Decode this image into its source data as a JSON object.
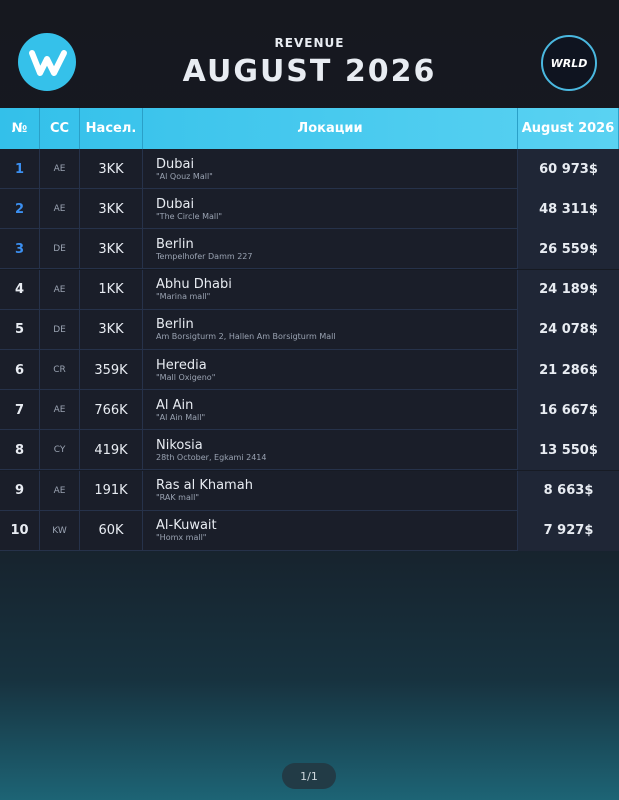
{
  "header": {
    "title": "REVENUE",
    "subtitle": "AUGUST 2026",
    "brand": "WRLD"
  },
  "table": {
    "columns": [
      "№",
      "CC",
      "Насел.",
      "Локации",
      "August 2026"
    ],
    "rows": [
      [
        "1",
        "AE",
        "3KK",
        "Dubai",
        "\"Al Qouz Mall\"",
        "60 973$"
      ],
      [
        "2",
        "AE",
        "3KK",
        "Dubai",
        "\"The Circle Mall\"",
        "48 311$"
      ],
      [
        "3",
        "DE",
        "3KK",
        "Berlin",
        "Tempelhofer Damm 227",
        "26 559$"
      ],
      [
        "4",
        "AE",
        "1KK",
        "Abhu Dhabi",
        "\"Marina mall\"",
        "24 189$"
      ],
      [
        "5",
        "DE",
        "3KK",
        "Berlin",
        "Am Borsigturm 2, Hallen Am Borsigturm Mall",
        "24 078$"
      ],
      [
        "6",
        "CR",
        "359K",
        "Heredia",
        "\"Mall Oxigeno\"",
        "21 286$"
      ],
      [
        "7",
        "AE",
        "766K",
        "Al Ain",
        "\"Al Ain Mall\"",
        "16 667$"
      ],
      [
        "8",
        "CY",
        "419K",
        "Nikosia",
        "28th October, Egkami 2414",
        "13 550$"
      ],
      [
        "9",
        "AE",
        "191K",
        "Ras al Khamah",
        "\"RAK mall\"",
        "8 663$"
      ],
      [
        "10",
        "KW",
        "60K",
        "Al-Kuwait",
        "\"Homx mall\"",
        "7 927$"
      ]
    ]
  },
  "footer": {
    "page": "1/1"
  }
}
